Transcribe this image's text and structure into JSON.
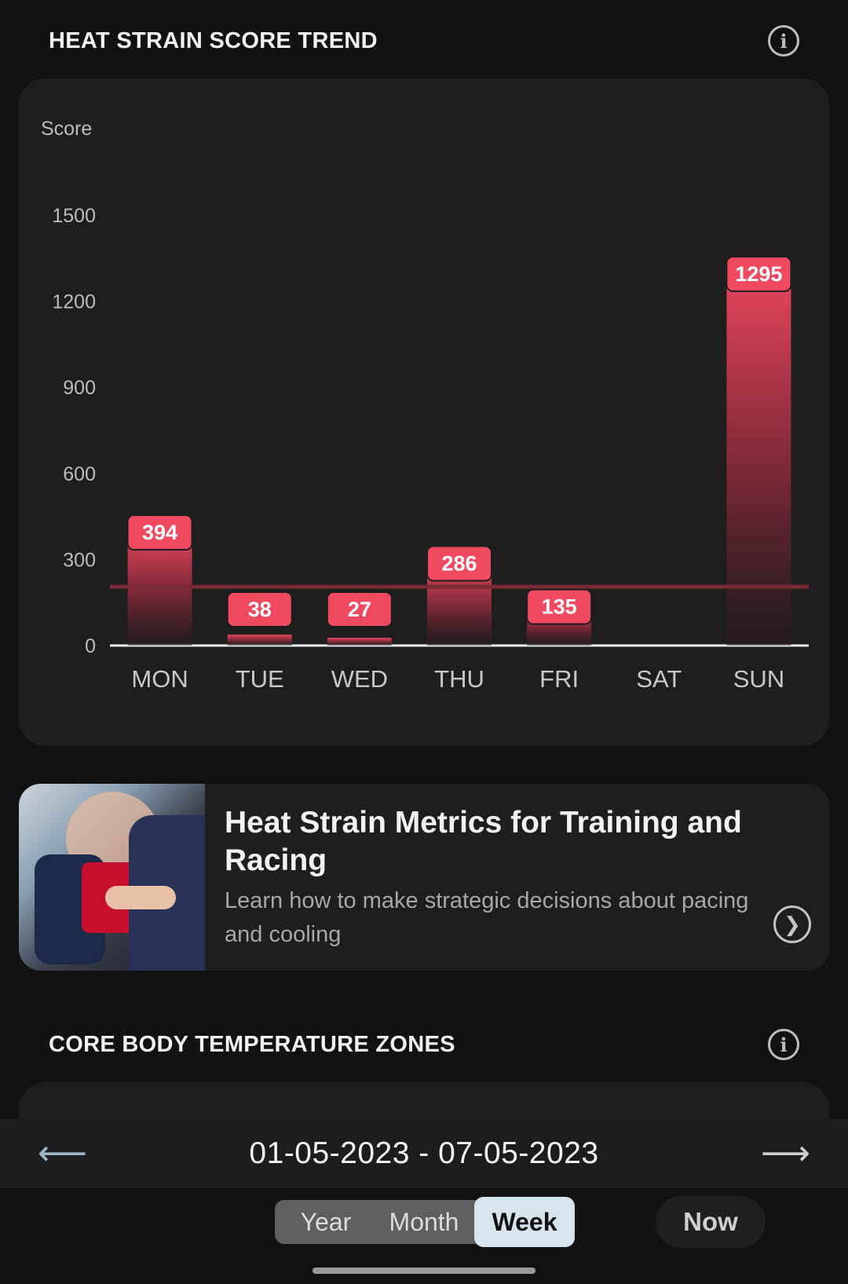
{
  "heat_strain": {
    "title": "HEAT STRAIN SCORE TREND",
    "info_icon": "info-icon"
  },
  "chart_data": {
    "type": "bar",
    "categories": [
      "MON",
      "TUE",
      "WED",
      "THU",
      "FRI",
      "SAT",
      "SUN"
    ],
    "values": [
      394,
      38,
      27,
      286,
      135,
      null,
      1295
    ],
    "value_labels": [
      "394",
      "38",
      "27",
      "286",
      "135",
      "",
      "1295"
    ],
    "ylabel": "Score",
    "yticks": [
      0,
      300,
      600,
      900,
      1200,
      1500
    ],
    "ylim": [
      0,
      1500
    ],
    "reference_line": 205,
    "bar_color": "#e8455c",
    "label_color": "#f04a60",
    "reference_color": "#7a2a35"
  },
  "article": {
    "title": "Heat Strain Metrics for Training and Racing",
    "description": "Learn how to make strategic decisions about pacing and cooling",
    "chevron_icon": "chevron-right-icon"
  },
  "core_temp": {
    "title": "CORE BODY TEMPERATURE ZONES",
    "info_icon": "info-icon"
  },
  "date_nav": {
    "prev_icon": "arrow-left-icon",
    "next_icon": "arrow-right-icon",
    "range": "01-05-2023 - 07-05-2023"
  },
  "period": {
    "options": [
      "Year",
      "Month",
      "Week"
    ],
    "selected": "Week",
    "now_label": "Now"
  }
}
